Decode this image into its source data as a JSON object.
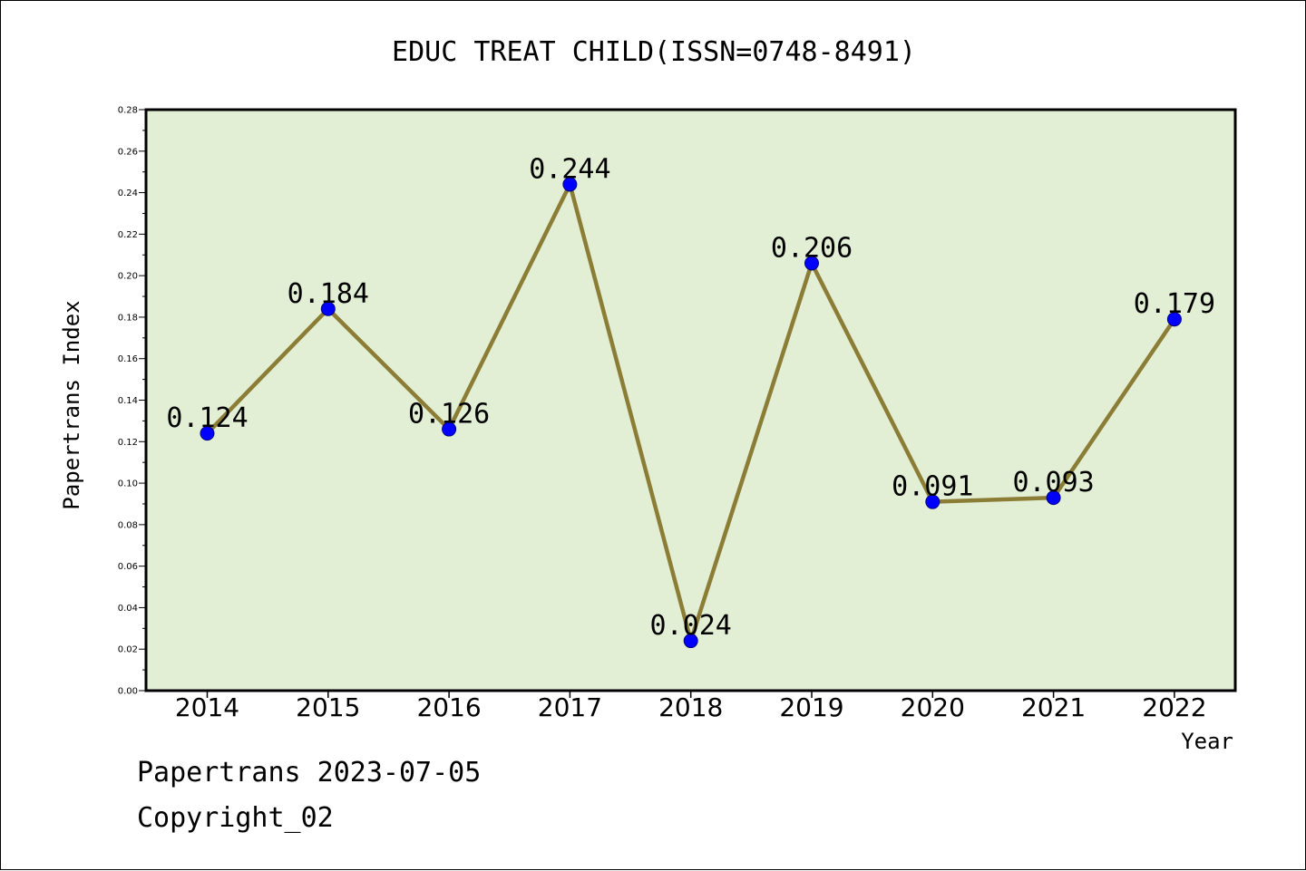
{
  "chart_data": {
    "type": "line",
    "title": "EDUC TREAT CHILD(ISSN=0748-8491)",
    "xlabel": "Year",
    "ylabel": "Papertrans Index",
    "categories": [
      "2014",
      "2015",
      "2016",
      "2017",
      "2018",
      "2019",
      "2020",
      "2021",
      "2022"
    ],
    "values": [
      0.124,
      0.184,
      0.126,
      0.244,
      0.024,
      0.206,
      0.091,
      0.093,
      0.179
    ],
    "data_labels": [
      "0.124",
      "0.184",
      "0.126",
      "0.244",
      "0.024",
      "0.206",
      "0.091",
      "0.093",
      "0.179"
    ],
    "ylim": [
      0,
      0.28
    ],
    "yticks": [
      "0.00",
      "0.02",
      "0.04",
      "0.06",
      "0.08",
      "0.10",
      "0.12",
      "0.14",
      "0.16",
      "0.18",
      "0.20",
      "0.22",
      "0.24",
      "0.26",
      "0.28"
    ],
    "grid": false,
    "legend": "none",
    "colors": {
      "plot_background": "#e2efd5",
      "line": "#8b7d35",
      "marker": "#0000ff",
      "marker_edge": "#000080"
    }
  },
  "footer": {
    "line1": "Papertrans 2023-07-05",
    "line2": "Copyright_02"
  }
}
